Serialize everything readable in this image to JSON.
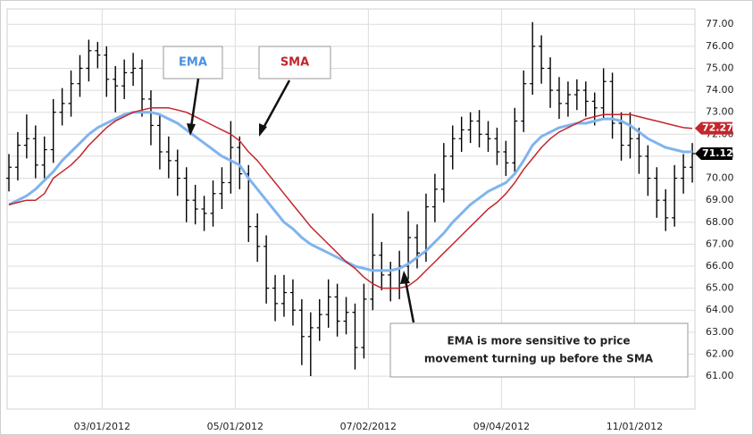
{
  "chart_data": {
    "type": "ohlc",
    "ylim": [
      59.5,
      77.7
    ],
    "yticks": [
      {
        "value": 61,
        "label": "61.00"
      },
      {
        "value": 62,
        "label": "62.00"
      },
      {
        "value": 63,
        "label": "63.00"
      },
      {
        "value": 64,
        "label": "64.00"
      },
      {
        "value": 65,
        "label": "65.00"
      },
      {
        "value": 66,
        "label": "66.00"
      },
      {
        "value": 67,
        "label": "67.00"
      },
      {
        "value": 68,
        "label": "68.00"
      },
      {
        "value": 69,
        "label": "69.00"
      },
      {
        "value": 70,
        "label": "70.00"
      },
      {
        "value": 71,
        "label": "71.00"
      },
      {
        "value": 72,
        "label": "72.00"
      },
      {
        "value": 73,
        "label": "73.00"
      },
      {
        "value": 74,
        "label": "74.00"
      },
      {
        "value": 75,
        "label": "75.00"
      },
      {
        "value": 76,
        "label": "76.00"
      },
      {
        "value": 77,
        "label": "77.00"
      }
    ],
    "xlim": [
      -0.2,
      77.3
    ],
    "xticks": [
      {
        "value": 10.5,
        "label": "03/01/2012"
      },
      {
        "value": 25.5,
        "label": "05/01/2012"
      },
      {
        "value": 40.5,
        "label": "07/02/2012"
      },
      {
        "value": 55.5,
        "label": "09/04/2012"
      },
      {
        "value": 70.5,
        "label": "11/01/2012"
      }
    ],
    "grid": true,
    "ohlc": {
      "color": "#000000",
      "open": [
        70.0,
        70.5,
        71.5,
        71.8,
        70.6,
        71.3,
        73.0,
        73.4,
        74.3,
        75.0,
        75.8,
        75.6,
        74.5,
        74.2,
        74.8,
        75.0,
        73.6,
        72.4,
        71.2,
        70.8,
        70.0,
        69.0,
        68.6,
        68.4,
        69.3,
        69.8,
        71.4,
        70.2,
        67.8,
        66.9,
        65.0,
        64.3,
        64.8,
        64.0,
        62.8,
        63.2,
        63.8,
        64.6,
        63.5,
        63.9,
        62.3,
        64.5,
        66.5,
        65.6,
        65.0,
        66.0,
        67.3,
        66.6,
        68.7,
        69.5,
        71.0,
        71.8,
        72.2,
        72.6,
        72.0,
        71.8,
        71.2,
        70.7,
        72.6,
        74.3,
        76.0,
        75.0,
        74.0,
        73.4,
        73.8,
        74.0,
        73.5,
        73.2,
        74.4,
        72.5,
        71.5,
        71.8,
        71.0,
        70.0,
        69.0,
        68.2,
        70.0,
        70.5
      ],
      "high": [
        71.1,
        72.1,
        72.9,
        72.4,
        71.9,
        73.6,
        74.1,
        74.9,
        75.6,
        76.3,
        76.2,
        76.0,
        75.1,
        75.4,
        75.7,
        75.4,
        74.0,
        72.9,
        71.9,
        71.3,
        70.5,
        69.7,
        69.2,
        69.9,
        70.5,
        72.6,
        71.9,
        70.6,
        68.4,
        67.4,
        65.6,
        65.6,
        65.4,
        64.5,
        63.9,
        64.5,
        65.4,
        65.2,
        64.6,
        64.3,
        65.2,
        68.4,
        67.1,
        66.2,
        66.7,
        68.5,
        67.9,
        69.3,
        70.2,
        71.6,
        72.4,
        72.8,
        73.0,
        73.1,
        72.6,
        72.3,
        71.7,
        73.2,
        74.9,
        77.1,
        76.5,
        75.5,
        74.6,
        74.4,
        74.5,
        74.4,
        73.9,
        75.0,
        74.8,
        73.0,
        73.0,
        72.3,
        71.5,
        70.5,
        69.5,
        70.6,
        71.1,
        71.6
      ],
      "low": [
        69.4,
        69.9,
        70.9,
        70.0,
        70.0,
        70.7,
        72.4,
        72.8,
        73.7,
        74.4,
        75.0,
        73.7,
        73.0,
        73.6,
        74.2,
        72.8,
        71.5,
        70.4,
        70.0,
        69.2,
        68.0,
        67.9,
        67.6,
        67.8,
        68.6,
        69.3,
        69.5,
        67.1,
        66.2,
        64.3,
        63.5,
        63.7,
        63.3,
        61.5,
        61.0,
        62.6,
        63.2,
        62.8,
        62.9,
        61.3,
        61.8,
        64.0,
        64.9,
        64.4,
        64.5,
        65.4,
        65.9,
        66.2,
        68.0,
        68.9,
        70.4,
        71.2,
        71.6,
        71.4,
        71.2,
        70.6,
        70.1,
        70.2,
        72.1,
        73.8,
        74.3,
        73.2,
        72.7,
        72.8,
        73.1,
        72.8,
        72.4,
        72.7,
        71.8,
        70.8,
        70.9,
        70.2,
        69.2,
        68.2,
        67.6,
        67.8,
        69.3,
        69.8
      ],
      "close": [
        70.5,
        71.5,
        71.8,
        70.6,
        71.3,
        73.0,
        73.4,
        74.3,
        75.0,
        75.8,
        75.6,
        74.5,
        74.2,
        74.8,
        75.0,
        73.6,
        72.4,
        71.2,
        70.8,
        70.0,
        69.0,
        68.6,
        68.4,
        69.3,
        69.8,
        71.4,
        70.2,
        67.8,
        66.9,
        65.0,
        64.3,
        64.8,
        64.0,
        62.8,
        63.2,
        63.8,
        64.6,
        63.5,
        63.9,
        62.3,
        64.5,
        66.5,
        65.6,
        65.0,
        66.0,
        67.3,
        66.6,
        68.7,
        69.5,
        71.0,
        71.8,
        72.2,
        72.6,
        72.0,
        71.8,
        71.2,
        70.7,
        72.6,
        74.3,
        76.0,
        75.0,
        74.0,
        73.4,
        73.8,
        74.0,
        73.5,
        73.2,
        74.4,
        72.5,
        71.5,
        71.8,
        71.0,
        70.0,
        69.0,
        68.2,
        70.0,
        70.5,
        71.12
      ],
      "value_labels": [
        null,
        null,
        null,
        null,
        null,
        null,
        null,
        null,
        null,
        null,
        null,
        null,
        null,
        null,
        null,
        null,
        null,
        null,
        null,
        null,
        null,
        null,
        null,
        null,
        null,
        null,
        null,
        null,
        null,
        null,
        null,
        null,
        null,
        null,
        null,
        null,
        null,
        null,
        null,
        null,
        null,
        null,
        null,
        null,
        null,
        null,
        null,
        null,
        null,
        null,
        null,
        null,
        null,
        null,
        null,
        null,
        null,
        null,
        null,
        null,
        null,
        null,
        null,
        null,
        null,
        null,
        null,
        null,
        null,
        null,
        null,
        null,
        null,
        null,
        null,
        null,
        null,
        "71.12"
      ]
    },
    "series": [
      {
        "name": "EMA",
        "color": "#80b4ee",
        "values": [
          68.8,
          69.0,
          69.2,
          69.5,
          69.9,
          70.3,
          70.8,
          71.2,
          71.6,
          72.0,
          72.3,
          72.5,
          72.7,
          72.9,
          73.0,
          73.0,
          73.0,
          72.9,
          72.7,
          72.5,
          72.2,
          71.9,
          71.6,
          71.3,
          71.0,
          70.8,
          70.6,
          70.0,
          69.5,
          69.0,
          68.5,
          68.0,
          67.7,
          67.3,
          67.0,
          66.8,
          66.6,
          66.4,
          66.2,
          66.0,
          65.9,
          65.8,
          65.8,
          65.8,
          65.9,
          66.1,
          66.4,
          66.7,
          67.1,
          67.5,
          68.0,
          68.4,
          68.8,
          69.1,
          69.4,
          69.6,
          69.8,
          70.2,
          70.8,
          71.5,
          71.9,
          72.1,
          72.3,
          72.4,
          72.5,
          72.5,
          72.6,
          72.7,
          72.7,
          72.6,
          72.4,
          72.1,
          71.8,
          71.6,
          71.4,
          71.3,
          71.2,
          71.2
        ]
      },
      {
        "name": "SMA",
        "color": "#c3262c",
        "values": [
          68.8,
          68.9,
          69.0,
          69.0,
          69.3,
          70.0,
          70.3,
          70.6,
          71.0,
          71.5,
          71.9,
          72.3,
          72.6,
          72.8,
          73.0,
          73.1,
          73.2,
          73.2,
          73.2,
          73.1,
          73.0,
          72.8,
          72.6,
          72.4,
          72.2,
          72.0,
          71.7,
          71.2,
          70.8,
          70.3,
          69.8,
          69.3,
          68.8,
          68.3,
          67.8,
          67.4,
          67.0,
          66.6,
          66.2,
          65.9,
          65.5,
          65.2,
          65.0,
          65.0,
          65.0,
          65.1,
          65.4,
          65.8,
          66.2,
          66.6,
          67.0,
          67.4,
          67.8,
          68.2,
          68.6,
          68.9,
          69.3,
          69.8,
          70.4,
          70.9,
          71.4,
          71.8,
          72.1,
          72.3,
          72.5,
          72.7,
          72.8,
          72.9,
          72.9,
          72.9,
          72.9,
          72.8,
          72.7,
          72.6,
          72.5,
          72.4,
          72.3,
          72.27
        ],
        "value_labels": [
          null,
          null,
          null,
          null,
          null,
          null,
          null,
          null,
          null,
          null,
          null,
          null,
          null,
          null,
          null,
          null,
          null,
          null,
          null,
          null,
          null,
          null,
          null,
          null,
          null,
          null,
          null,
          null,
          null,
          null,
          null,
          null,
          null,
          null,
          null,
          null,
          null,
          null,
          null,
          null,
          null,
          null,
          null,
          null,
          null,
          null,
          null,
          null,
          null,
          null,
          null,
          null,
          null,
          null,
          null,
          null,
          null,
          null,
          null,
          null,
          null,
          null,
          null,
          null,
          null,
          null,
          null,
          null,
          null,
          null,
          null,
          null,
          null,
          null,
          null,
          null,
          null,
          "72.27"
        ]
      }
    ],
    "callout": [
      "EMA is more sensitive to price",
      "movement turning up before the SMA"
    ]
  }
}
